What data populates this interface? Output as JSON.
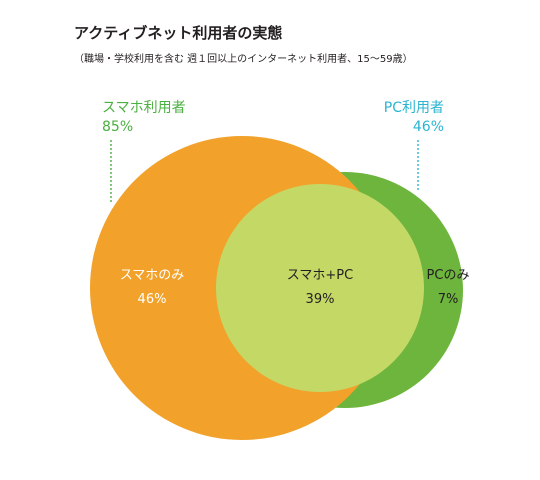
{
  "title": "アクティブネット利用者の実態",
  "subtitle": "（職場・学校利用を含む 週１回以上のインターネット利用者、15〜59歳）",
  "colors": {
    "smartphone": "#f2a22a",
    "pc": "#6db53c",
    "overlap": "#c4d866",
    "smartphone_callout": "#4bb040",
    "pc_callout": "#2bb4d1",
    "text_dark": "#231f20",
    "text_light": "#ffffff"
  },
  "callouts": {
    "smartphone": {
      "label": "スマホ利用者",
      "value": "85%"
    },
    "pc": {
      "label": "PC利用者",
      "value": "46%"
    }
  },
  "regions": {
    "smartphone_only": {
      "label": "スマホのみ",
      "value": "46%"
    },
    "both": {
      "label": "スマホ+PC",
      "value": "39%"
    },
    "pc_only": {
      "label": "PCのみ",
      "value": "7%"
    }
  }
}
